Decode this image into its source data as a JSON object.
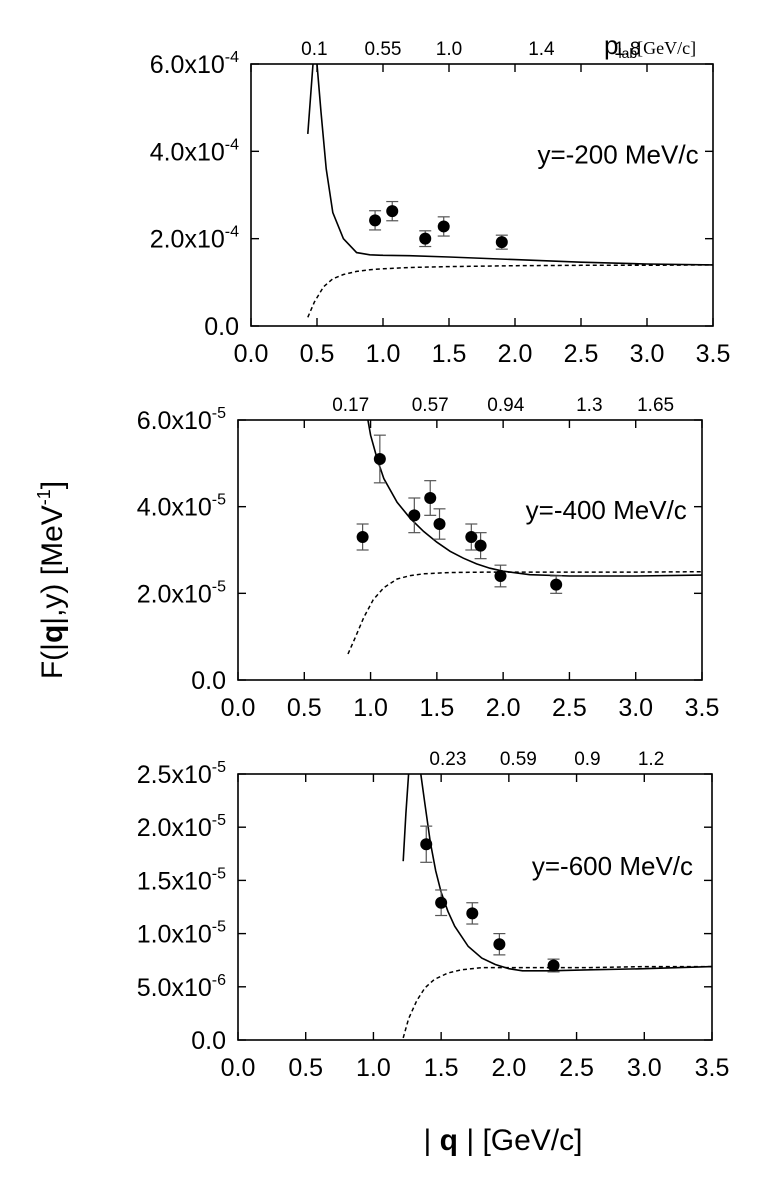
{
  "chart_data": [
    {
      "type": "line",
      "panel_label": "y=-200 MeV/c",
      "xlim": [
        0,
        3.5
      ],
      "ylim": [
        0,
        0.0006
      ],
      "x_ticks": [
        0.0,
        0.5,
        1.0,
        1.5,
        2.0,
        2.5,
        3.0,
        3.5
      ],
      "x_tick_labels": [
        "0.0",
        "0.5",
        "1.0",
        "1.5",
        "2.0",
        "2.5",
        "3.0",
        "3.5"
      ],
      "y_ticks": [
        0,
        0.0002,
        0.0004,
        0.0006
      ],
      "y_tick_labels": [
        "0.0",
        "2.0x10",
        "4.0x10",
        "6.0x10"
      ],
      "y_tick_exponents": [
        "",
        "-4",
        "-4",
        "-4"
      ],
      "top_axis_title": "p",
      "top_axis_subscript": "lab",
      "top_axis_unit": "[GeV/c]",
      "top_ticks": [
        {
          "x": 0.48,
          "label": "0.1"
        },
        {
          "x": 1.0,
          "label": "0.55"
        },
        {
          "x": 1.5,
          "label": "1.0"
        },
        {
          "x": 2.2,
          "label": "1.4"
        },
        {
          "x": 2.85,
          "label": "1.8"
        }
      ],
      "series": [
        {
          "name": "solid",
          "style": "solid",
          "x": [
            0.43,
            0.45,
            0.47,
            0.485,
            0.5,
            0.53,
            0.57,
            0.62,
            0.7,
            0.8,
            0.9,
            1.0,
            1.2,
            1.5,
            2.0,
            2.5,
            3.0,
            3.5
          ],
          "y": [
            0.00044,
            0.00052,
            0.0006,
            0.00062,
            0.0006,
            0.00049,
            0.00036,
            0.00026,
            0.0002,
            0.000168,
            0.000163,
            0.000162,
            0.000161,
            0.000158,
            0.000152,
            0.000146,
            0.000142,
            0.00014
          ]
        },
        {
          "name": "dashed",
          "style": "dashed",
          "x": [
            0.43,
            0.48,
            0.55,
            0.62,
            0.7,
            0.8,
            0.9,
            1.0,
            1.2,
            1.5,
            2.0,
            2.5,
            3.0,
            3.5
          ],
          "y": [
            2e-05,
            5.5e-05,
            9e-05,
            0.000108,
            0.000118,
            0.000125,
            0.000129,
            0.000131,
            0.000134,
            0.000136,
            0.000138,
            0.000139,
            0.000139,
            0.00014
          ]
        },
        {
          "name": "data",
          "style": "points",
          "x": [
            0.94,
            1.07,
            1.32,
            1.46,
            1.9
          ],
          "y": [
            0.000242,
            0.000263,
            0.0002,
            0.000228,
            0.000192
          ],
          "err": [
            2.2e-05,
            2.2e-05,
            1.8e-05,
            2.2e-05,
            1.6e-05
          ]
        }
      ]
    },
    {
      "type": "line",
      "panel_label": "y=-400 MeV/c",
      "xlim": [
        0,
        3.5
      ],
      "ylim": [
        0,
        6e-05
      ],
      "x_ticks": [
        0.0,
        0.5,
        1.0,
        1.5,
        2.0,
        2.5,
        3.0,
        3.5
      ],
      "x_tick_labels": [
        "0.0",
        "0.5",
        "1.0",
        "1.5",
        "2.0",
        "2.5",
        "3.0",
        "3.5"
      ],
      "y_ticks": [
        0,
        2e-05,
        4e-05,
        6e-05
      ],
      "y_tick_labels": [
        "0.0",
        "2.0x10",
        "4.0x10",
        "6.0x10"
      ],
      "y_tick_exponents": [
        "",
        "-5",
        "-5",
        "-5"
      ],
      "top_ticks": [
        {
          "x": 0.85,
          "label": "0.17"
        },
        {
          "x": 1.45,
          "label": "0.57"
        },
        {
          "x": 2.02,
          "label": "0.94"
        },
        {
          "x": 2.65,
          "label": "1.3"
        },
        {
          "x": 3.15,
          "label": "1.65"
        }
      ],
      "series": [
        {
          "name": "solid",
          "style": "solid",
          "x": [
            0.98,
            1.0,
            1.05,
            1.1,
            1.2,
            1.3,
            1.4,
            1.5,
            1.6,
            1.7,
            1.8,
            1.9,
            2.0,
            2.2,
            2.5,
            3.0,
            3.5
          ],
          "y": [
            6e-05,
            5.65e-05,
            5.1e-05,
            4.65e-05,
            4.1e-05,
            3.73e-05,
            3.43e-05,
            3.18e-05,
            2.97e-05,
            2.81e-05,
            2.68e-05,
            2.58e-05,
            2.51e-05,
            2.43e-05,
            2.4e-05,
            2.4e-05,
            2.42e-05
          ]
        },
        {
          "name": "dashed",
          "style": "dashed",
          "x": [
            0.83,
            0.88,
            0.95,
            1.02,
            1.1,
            1.2,
            1.3,
            1.4,
            1.6,
            1.9,
            2.2,
            2.6,
            3.0,
            3.5
          ],
          "y": [
            6e-06,
            9.5e-06,
            1.45e-05,
            1.85e-05,
            2.13e-05,
            2.33e-05,
            2.41e-05,
            2.45e-05,
            2.48e-05,
            2.49e-05,
            2.49e-05,
            2.49e-05,
            2.49e-05,
            2.5e-05
          ]
        },
        {
          "name": "data",
          "style": "points",
          "x": [
            0.94,
            1.07,
            1.33,
            1.45,
            1.52,
            1.76,
            1.83,
            1.98,
            2.4
          ],
          "y": [
            3.3e-05,
            5.1e-05,
            3.8e-05,
            4.2e-05,
            3.6e-05,
            3.3e-05,
            3.1e-05,
            2.4e-05,
            2.2e-05
          ],
          "err": [
            3e-06,
            5.5e-06,
            4e-06,
            4e-06,
            3.5e-06,
            3e-06,
            3e-06,
            2.5e-06,
            2e-06
          ]
        }
      ]
    },
    {
      "type": "line",
      "panel_label": "y=-600 MeV/c",
      "xlim": [
        0,
        3.5
      ],
      "ylim": [
        0,
        2.5e-05
      ],
      "x_ticks": [
        0.0,
        0.5,
        1.0,
        1.5,
        2.0,
        2.5,
        3.0,
        3.5
      ],
      "x_tick_labels": [
        "0.0",
        "0.5",
        "1.0",
        "1.5",
        "2.0",
        "2.5",
        "3.0",
        "3.5"
      ],
      "y_ticks": [
        0,
        5e-06,
        1e-05,
        1.5e-05,
        2e-05,
        2.5e-05
      ],
      "y_tick_labels": [
        "0.0",
        "5.0x10",
        "1.0x10",
        "1.5x10",
        "2.0x10",
        "2.5x10"
      ],
      "y_tick_exponents": [
        "",
        "-6",
        "-5",
        "-5",
        "-5",
        "-5"
      ],
      "top_ticks": [
        {
          "x": 1.55,
          "label": "0.23"
        },
        {
          "x": 2.07,
          "label": "0.59"
        },
        {
          "x": 2.58,
          "label": "0.9"
        },
        {
          "x": 3.05,
          "label": "1.2"
        }
      ],
      "series": [
        {
          "name": "solid-left",
          "style": "solid",
          "x": [
            1.22,
            1.24,
            1.26
          ],
          "y": [
            1.68e-05,
            2.13e-05,
            2.5e-05
          ]
        },
        {
          "name": "solid",
          "style": "solid",
          "x": [
            1.35,
            1.38,
            1.42,
            1.46,
            1.5,
            1.55,
            1.6,
            1.7,
            1.8,
            1.9,
            2.0,
            2.1,
            2.3,
            2.6,
            3.0,
            3.5
          ],
          "y": [
            2.5e-05,
            2.22e-05,
            1.86e-05,
            1.59e-05,
            1.39e-05,
            1.21e-05,
            1.07e-05,
            8.8e-06,
            7.7e-06,
            7.1e-06,
            6.7e-06,
            6.5e-06,
            6.5e-06,
            6.6e-06,
            6.7e-06,
            6.9e-06
          ]
        },
        {
          "name": "dashed",
          "style": "dashed",
          "x": [
            1.22,
            1.26,
            1.32,
            1.38,
            1.45,
            1.55,
            1.65,
            1.8,
            2.0,
            2.3,
            2.6,
            3.0,
            3.5
          ],
          "y": [
            2e-07,
            2e-06,
            3.7e-06,
            4.9e-06,
            5.7e-06,
            6.3e-06,
            6.6e-06,
            6.8e-06,
            6.8e-06,
            6.8e-06,
            6.8e-06,
            6.9e-06,
            6.9e-06
          ]
        },
        {
          "name": "data",
          "style": "points",
          "x": [
            1.39,
            1.5,
            1.73,
            1.93,
            2.33
          ],
          "y": [
            1.84e-05,
            1.29e-05,
            1.19e-05,
            9e-06,
            7e-06
          ],
          "err": [
            1.7e-06,
            1.2e-06,
            1e-06,
            1e-06,
            6e-07
          ]
        }
      ]
    }
  ],
  "shared": {
    "ylabel_prefix": "F(|",
    "ylabel_bold": "q",
    "ylabel_mid": "|,y) [MeV",
    "ylabel_sup": "-1",
    "ylabel_suffix": "]",
    "xlabel_prefix": "| ",
    "xlabel_bold": "q",
    "xlabel_suffix": " | [GeV/c]"
  }
}
